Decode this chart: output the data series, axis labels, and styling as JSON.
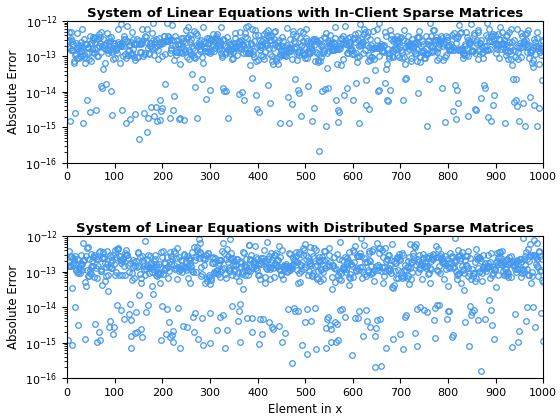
{
  "title1": "System of Linear Equations with In-Client Sparse Matrices",
  "title2": "System of Linear Equations with Distributed Sparse Matrices",
  "xlabel": "Element in x",
  "ylabel": "Absolute Error",
  "n_points": 1000,
  "xlim": [
    0,
    1000
  ],
  "ylim": [
    1e-16,
    1e-12
  ],
  "marker_color": "#4499EE",
  "marker_size": 4,
  "marker_edge_width": 0.9,
  "seed1": 42,
  "seed2": 99,
  "title_fontsize": 9.5,
  "label_fontsize": 8.5,
  "tick_fontsize": 8,
  "background_color": "#ffffff"
}
